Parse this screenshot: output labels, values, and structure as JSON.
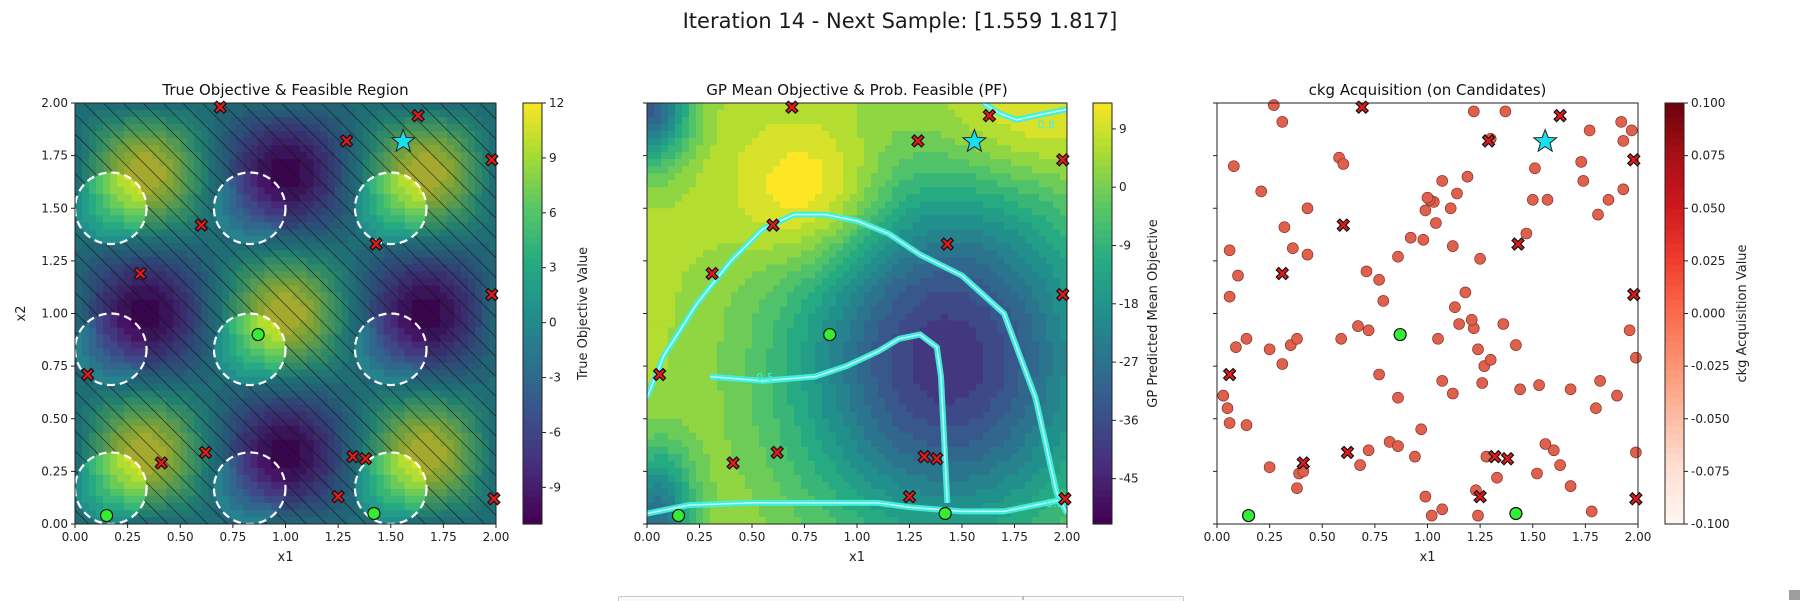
{
  "figure": {
    "suptitle": "Iteration 14 - Next Sample: [1.559 1.817]"
  },
  "colors": {
    "infeasible_marker": "#e31a1c",
    "feasible_marker": "#33ee33",
    "next_sample_star": "#19e0f0",
    "candidate_point": "#e0604e",
    "pf_contour": "#3ff0e0",
    "circle_outline": "#ffffff"
  },
  "chart_data": [
    {
      "type": "heatmap",
      "title": "True Objective & Feasible Region",
      "xlabel": "x1",
      "ylabel": "x2",
      "xlim": [
        0,
        2
      ],
      "ylim": [
        0,
        2
      ],
      "xticks": [
        "0.00",
        "0.25",
        "0.50",
        "0.75",
        "1.00",
        "1.25",
        "1.50",
        "1.75",
        "2.00"
      ],
      "yticks": [
        "0.00",
        "0.25",
        "0.50",
        "0.75",
        "1.00",
        "1.25",
        "1.50",
        "1.75",
        "2.00"
      ],
      "colorbar": {
        "label": "True Objective Value",
        "range": [
          -11,
          12
        ],
        "ticks": [
          "-9",
          "-6",
          "-3",
          "0",
          "3",
          "6",
          "9",
          "12"
        ],
        "tick_values": [
          -9,
          -6,
          -3,
          0,
          3,
          6,
          9,
          12
        ],
        "colormap": "viridis"
      },
      "infeasible_region": "hatched (diagonal lines) outside circles",
      "feasible_circles": {
        "radius": 0.17,
        "centers": [
          [
            0.17,
            1.5
          ],
          [
            0.83,
            1.5
          ],
          [
            1.5,
            1.5
          ],
          [
            0.17,
            0.83
          ],
          [
            0.83,
            0.83
          ],
          [
            1.5,
            0.83
          ],
          [
            0.17,
            0.17
          ],
          [
            0.83,
            0.17
          ],
          [
            1.5,
            0.17
          ]
        ]
      },
      "infeasible_samples": [
        [
          0.69,
          1.98
        ],
        [
          1.63,
          1.94
        ],
        [
          1.29,
          1.82
        ],
        [
          1.98,
          1.73
        ],
        [
          0.6,
          1.42
        ],
        [
          1.43,
          1.33
        ],
        [
          0.31,
          1.19
        ],
        [
          1.98,
          1.09
        ],
        [
          0.06,
          0.71
        ],
        [
          0.62,
          0.34
        ],
        [
          0.41,
          0.29
        ],
        [
          1.32,
          0.32
        ],
        [
          1.38,
          0.31
        ],
        [
          1.25,
          0.13
        ],
        [
          1.99,
          0.12
        ]
      ],
      "feasible_samples": [
        [
          0.87,
          0.9
        ],
        [
          0.15,
          0.04
        ],
        [
          1.42,
          0.05
        ]
      ],
      "next_sample": [
        1.559,
        1.817
      ]
    },
    {
      "type": "heatmap",
      "title": "GP Mean Objective & Prob. Feasible (PF)",
      "xlabel": "x1",
      "ylabel": "",
      "xlim": [
        0,
        2
      ],
      "ylim": [
        0,
        2
      ],
      "xticks": [
        "0.00",
        "0.25",
        "0.50",
        "0.75",
        "1.00",
        "1.25",
        "1.50",
        "1.75",
        "2.00"
      ],
      "colorbar": {
        "label": "GP Predicted Mean Objective",
        "range": [
          -52,
          13
        ],
        "ticks": [
          "-45",
          "-36",
          "-27",
          "-18",
          "-9",
          "0",
          "9"
        ],
        "tick_values": [
          -45,
          -36,
          -27,
          -18,
          -9,
          0,
          9
        ],
        "colormap": "viridis"
      },
      "pf_contour_labels": [
        "0.8",
        "0.5",
        "0.8"
      ],
      "infeasible_samples": [
        [
          0.69,
          1.98
        ],
        [
          1.63,
          1.94
        ],
        [
          1.29,
          1.82
        ],
        [
          1.98,
          1.73
        ],
        [
          0.6,
          1.42
        ],
        [
          1.43,
          1.33
        ],
        [
          0.31,
          1.19
        ],
        [
          1.98,
          1.09
        ],
        [
          0.06,
          0.71
        ],
        [
          0.62,
          0.34
        ],
        [
          0.41,
          0.29
        ],
        [
          1.32,
          0.32
        ],
        [
          1.38,
          0.31
        ],
        [
          1.25,
          0.13
        ],
        [
          1.99,
          0.12
        ]
      ],
      "feasible_samples": [
        [
          0.87,
          0.9
        ],
        [
          0.15,
          0.04
        ],
        [
          1.42,
          0.05
        ]
      ],
      "next_sample": [
        1.559,
        1.817
      ]
    },
    {
      "type": "scatter",
      "title": "ckg Acquisition (on Candidates)",
      "xlabel": "x1",
      "ylabel": "",
      "xlim": [
        0,
        2
      ],
      "ylim": [
        0,
        2
      ],
      "xticks": [
        "0.00",
        "0.25",
        "0.50",
        "0.75",
        "1.00",
        "1.25",
        "1.50",
        "1.75",
        "2.00"
      ],
      "colorbar": {
        "label": "ckg Acquisition Value",
        "range": [
          -0.1,
          0.1
        ],
        "ticks": [
          "-0.100",
          "-0.075",
          "-0.050",
          "-0.025",
          "0.000",
          "0.025",
          "0.050",
          "0.075",
          "0.100"
        ],
        "tick_values": [
          -0.1,
          -0.075,
          -0.05,
          -0.025,
          0,
          0.025,
          0.05,
          0.075,
          0.1
        ],
        "colormap": "Reds"
      },
      "candidates": [
        [
          0.27,
          1.99
        ],
        [
          0.31,
          1.91
        ],
        [
          0.08,
          1.7
        ],
        [
          0.43,
          1.5
        ],
        [
          0.32,
          1.41
        ],
        [
          0.58,
          1.74
        ],
        [
          0.6,
          1.71
        ],
        [
          0.21,
          1.58
        ],
        [
          0.06,
          1.3
        ],
        [
          0.43,
          1.28
        ],
        [
          0.36,
          1.31
        ],
        [
          0.1,
          1.18
        ],
        [
          0.06,
          1.08
        ],
        [
          0.14,
          0.88
        ],
        [
          0.09,
          0.84
        ],
        [
          0.25,
          0.83
        ],
        [
          0.35,
          0.85
        ],
        [
          0.38,
          0.88
        ],
        [
          0.59,
          0.88
        ],
        [
          0.03,
          0.61
        ],
        [
          0.05,
          0.55
        ],
        [
          0.06,
          0.48
        ],
        [
          0.14,
          0.47
        ],
        [
          0.25,
          0.27
        ],
        [
          0.39,
          0.24
        ],
        [
          0.41,
          0.25
        ],
        [
          0.38,
          0.17
        ],
        [
          0.68,
          0.28
        ],
        [
          0.72,
          0.35
        ],
        [
          0.82,
          0.39
        ],
        [
          0.97,
          0.45
        ],
        [
          0.86,
          0.37
        ],
        [
          0.94,
          0.32
        ],
        [
          0.99,
          0.13
        ],
        [
          1.02,
          0.04
        ],
        [
          1.07,
          0.07
        ],
        [
          1.24,
          0.04
        ],
        [
          1.23,
          0.16
        ],
        [
          1.28,
          0.32
        ],
        [
          1.33,
          0.22
        ],
        [
          1.52,
          0.24
        ],
        [
          1.63,
          0.28
        ],
        [
          1.6,
          0.35
        ],
        [
          1.56,
          0.38
        ],
        [
          1.68,
          0.18
        ],
        [
          1.78,
          0.06
        ],
        [
          1.99,
          0.34
        ],
        [
          1.8,
          0.55
        ],
        [
          1.68,
          0.64
        ],
        [
          1.82,
          0.68
        ],
        [
          1.9,
          0.61
        ],
        [
          1.99,
          0.79
        ],
        [
          1.53,
          0.66
        ],
        [
          1.44,
          0.64
        ],
        [
          1.42,
          0.85
        ],
        [
          1.36,
          0.95
        ],
        [
          1.24,
          0.83
        ],
        [
          1.22,
          0.93
        ],
        [
          1.15,
          0.95
        ],
        [
          1.21,
          0.97
        ],
        [
          1.18,
          1.1
        ],
        [
          1.13,
          1.03
        ],
        [
          1.25,
          1.26
        ],
        [
          1.12,
          1.32
        ],
        [
          1.04,
          1.43
        ],
        [
          0.98,
          1.35
        ],
        [
          0.92,
          1.36
        ],
        [
          0.86,
          1.27
        ],
        [
          0.77,
          1.16
        ],
        [
          0.79,
          1.06
        ],
        [
          0.71,
          1.2
        ],
        [
          0.72,
          0.92
        ],
        [
          0.67,
          0.94
        ],
        [
          0.77,
          0.71
        ],
        [
          0.86,
          0.6
        ],
        [
          1.07,
          0.68
        ],
        [
          1.12,
          0.62
        ],
        [
          1.26,
          0.67
        ],
        [
          1.27,
          0.75
        ],
        [
          1.3,
          0.78
        ],
        [
          1.05,
          0.88
        ],
        [
          0.99,
          1.49
        ],
        [
          1.03,
          1.53
        ],
        [
          1.01,
          1.54
        ],
        [
          1.11,
          1.5
        ],
        [
          1.14,
          1.57
        ],
        [
          1.19,
          1.65
        ],
        [
          1.07,
          1.63
        ],
        [
          1.0,
          1.55
        ],
        [
          1.22,
          1.96
        ],
        [
          1.37,
          1.96
        ],
        [
          1.3,
          1.83
        ],
        [
          1.47,
          1.38
        ],
        [
          1.5,
          1.54
        ],
        [
          1.57,
          1.54
        ],
        [
          1.73,
          1.72
        ],
        [
          1.74,
          1.63
        ],
        [
          1.77,
          1.87
        ],
        [
          1.81,
          1.47
        ],
        [
          1.86,
          1.54
        ],
        [
          1.92,
          1.91
        ],
        [
          1.93,
          1.82
        ],
        [
          1.97,
          1.87
        ],
        [
          1.93,
          1.59
        ],
        [
          1.51,
          1.69
        ],
        [
          0.31,
          0.76
        ],
        [
          1.96,
          0.92
        ]
      ],
      "infeasible_samples": [
        [
          0.69,
          1.98
        ],
        [
          1.63,
          1.94
        ],
        [
          1.29,
          1.82
        ],
        [
          1.98,
          1.73
        ],
        [
          0.6,
          1.42
        ],
        [
          1.43,
          1.33
        ],
        [
          0.31,
          1.19
        ],
        [
          1.98,
          1.09
        ],
        [
          0.06,
          0.71
        ],
        [
          0.62,
          0.34
        ],
        [
          0.41,
          0.29
        ],
        [
          1.32,
          0.32
        ],
        [
          1.38,
          0.31
        ],
        [
          1.25,
          0.13
        ],
        [
          1.99,
          0.12
        ]
      ],
      "feasible_samples": [
        [
          0.87,
          0.9
        ],
        [
          0.15,
          0.04
        ],
        [
          1.42,
          0.05
        ]
      ],
      "next_sample": [
        1.559,
        1.817
      ]
    }
  ]
}
